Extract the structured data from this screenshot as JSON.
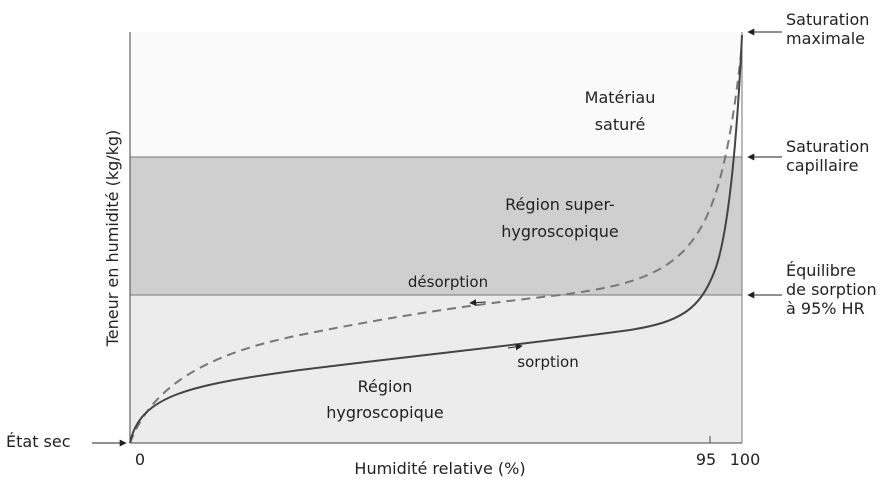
{
  "axes": {
    "y_label": "Teneur en humidité (kg/kg)",
    "x_label": "Humidité relative (%)",
    "x_ticks": [
      "0",
      "95",
      "100"
    ]
  },
  "regions": [
    {
      "lines": [
        "Matériau",
        "saturé"
      ]
    },
    {
      "lines": [
        "Région super-",
        "hygroscopique"
      ]
    },
    {
      "lines": [
        "Région",
        "hygroscopique"
      ]
    }
  ],
  "curves": {
    "desorption": "désorption",
    "sorption": "sorption"
  },
  "levels": [
    {
      "lines": [
        "Saturation",
        "maximale"
      ]
    },
    {
      "lines": [
        "Saturation",
        "capillaire"
      ]
    },
    {
      "lines": [
        "Équilibre",
        "de sorption",
        "à 95% HR"
      ]
    }
  ],
  "origin_label": "État sec"
}
